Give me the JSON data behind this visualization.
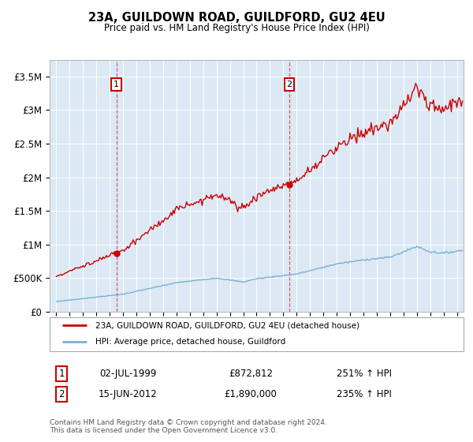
{
  "title": "23A, GUILDOWN ROAD, GUILDFORD, GU2 4EU",
  "subtitle": "Price paid vs. HM Land Registry's House Price Index (HPI)",
  "background_color": "#dce9f5",
  "sale1_date_num": 1999.5,
  "sale1_price": 872812,
  "sale1_date_str": "02-JUL-1999",
  "sale1_hpi_pct": "251% ↑ HPI",
  "sale2_date_num": 2012.45,
  "sale2_price": 1890000,
  "sale2_date_str": "15-JUN-2012",
  "sale2_hpi_pct": "235% ↑ HPI",
  "legend_line1": "23A, GUILDOWN ROAD, GUILDFORD, GU2 4EU (detached house)",
  "legend_line2": "HPI: Average price, detached house, Guildford",
  "footnote": "Contains HM Land Registry data © Crown copyright and database right 2024.\nThis data is licensed under the Open Government Licence v3.0.",
  "ylim": [
    0,
    3750000
  ],
  "yticks": [
    0,
    500000,
    1000000,
    1500000,
    2000000,
    2500000,
    3000000,
    3500000
  ],
  "ytick_labels": [
    "£0",
    "£500K",
    "£1M",
    "£1.5M",
    "£2M",
    "£2.5M",
    "£3M",
    "£3.5M"
  ],
  "xlim_start": 1994.5,
  "xlim_end": 2025.5,
  "red_color": "#cc0000",
  "blue_color": "#7ab0d4",
  "grid_color": "white",
  "box_bg": "white"
}
